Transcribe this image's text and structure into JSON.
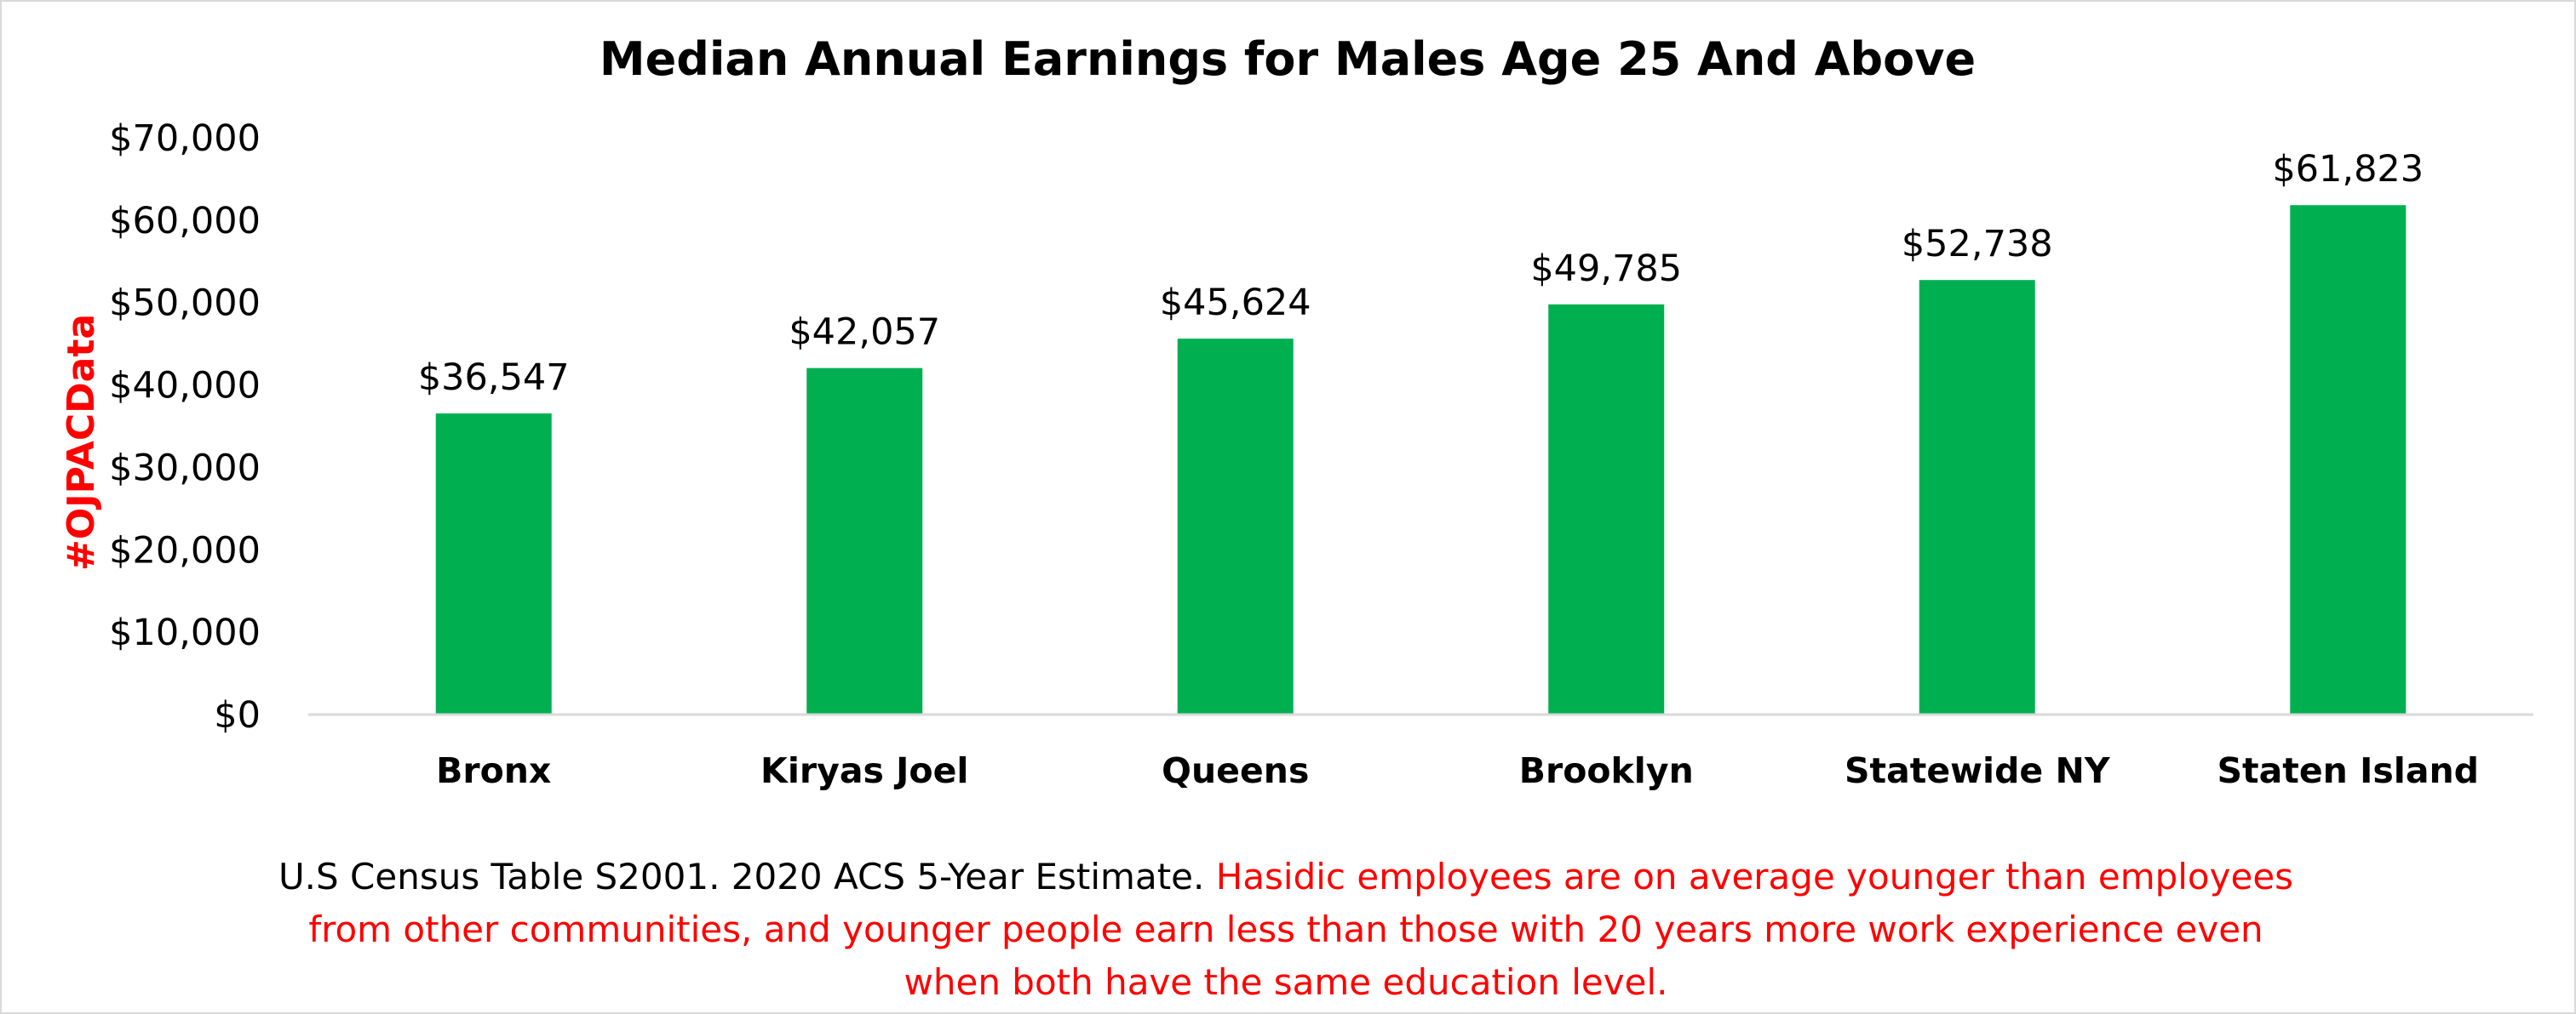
{
  "chart_data": {
    "type": "bar",
    "title": "Median Annual Earnings for Males Age 25 And Above",
    "categories": [
      "Bronx",
      "Kiryas Joel",
      "Queens",
      "Brooklyn",
      "Statewide NY",
      "Staten Island"
    ],
    "values": [
      36547,
      42057,
      45624,
      49785,
      52738,
      61823
    ],
    "data_labels": [
      "$36,547",
      "$42,057",
      "$45,624",
      "$49,785",
      "$52,738",
      "$61,823"
    ],
    "yticks": [
      0,
      10000,
      20000,
      30000,
      40000,
      50000,
      60000,
      70000
    ],
    "ytick_labels": [
      "$0",
      "$10,000",
      "$20,000",
      "$30,000",
      "$40,000",
      "$50,000",
      "$60,000",
      "$70,000"
    ],
    "ylim": [
      0,
      70000
    ],
    "xlabel": "",
    "ylabel": "",
    "grid": false,
    "legend": "none",
    "bar_color": "#00b050"
  },
  "watermark": "#OJPACData",
  "footnote": {
    "source": "U.S Census Table S2001. 2020 ACS 5-Year Estimate.",
    "note": "Hasidic employees are on average younger than employees from other communities, and younger people earn less than those with 20 years more work experience even when both have the same education level."
  },
  "colors": {
    "accent_red": "#ff0000",
    "axis_line": "#d9d9d9",
    "frame_border": "#d9d9d9"
  }
}
